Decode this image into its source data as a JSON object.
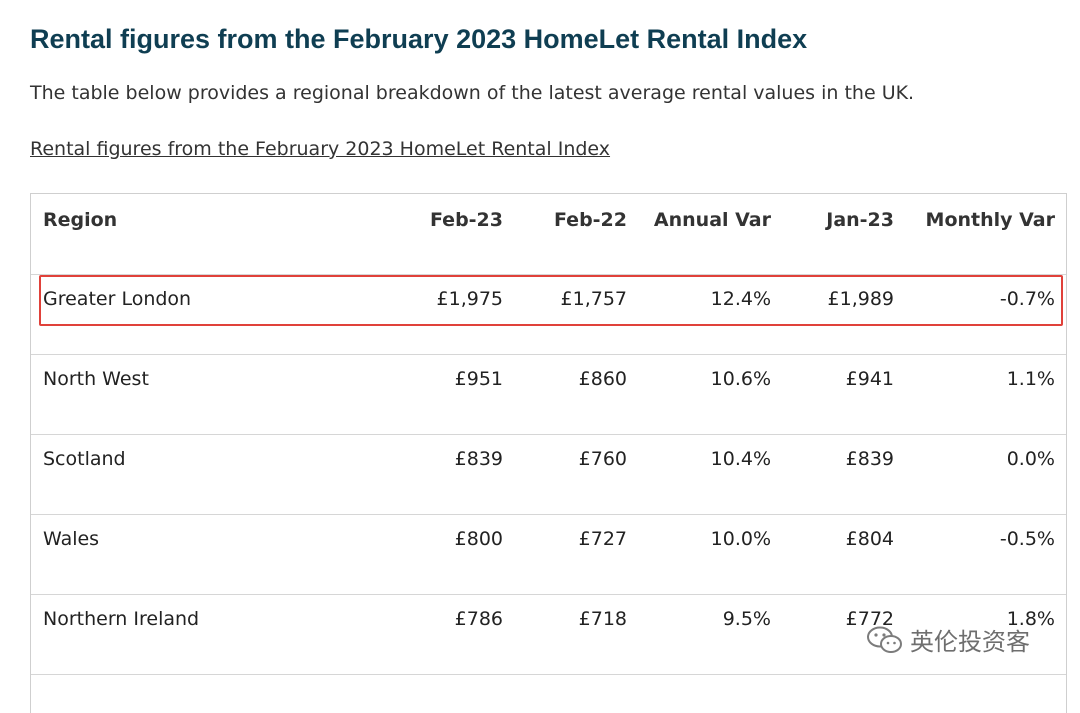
{
  "heading": "Rental figures from the February 2023 HomeLet Rental Index",
  "intro": "The table below provides a regional breakdown of the latest average rental values in the UK.",
  "caption_link": "Rental figures from the February 2023 HomeLet Rental Index",
  "table": {
    "columns": [
      "Region",
      "Feb-23",
      "Feb-22",
      "Annual Var",
      "Jan-23",
      "Monthly Var"
    ],
    "rows": [
      [
        "Greater London",
        "£1,975",
        "£1,757",
        "12.4%",
        "£1,989",
        "-0.7%"
      ],
      [
        "North West",
        "£951",
        "£860",
        "10.6%",
        "£941",
        "1.1%"
      ],
      [
        "Scotland",
        "£839",
        "£760",
        "10.4%",
        "£839",
        "0.0%"
      ],
      [
        "Wales",
        "£800",
        "£727",
        "10.0%",
        "£804",
        "-0.5%"
      ],
      [
        "Northern Ireland",
        "£786",
        "£718",
        "9.5%",
        "£772",
        "1.8%"
      ]
    ],
    "highlighted_row": "Greater London"
  },
  "watermark": {
    "text": "英伦投资客",
    "icon": "wechat-icon"
  },
  "colors": {
    "heading": "#0f3e52",
    "highlight_border": "#e0413a",
    "table_border": "#cfcfcf"
  }
}
